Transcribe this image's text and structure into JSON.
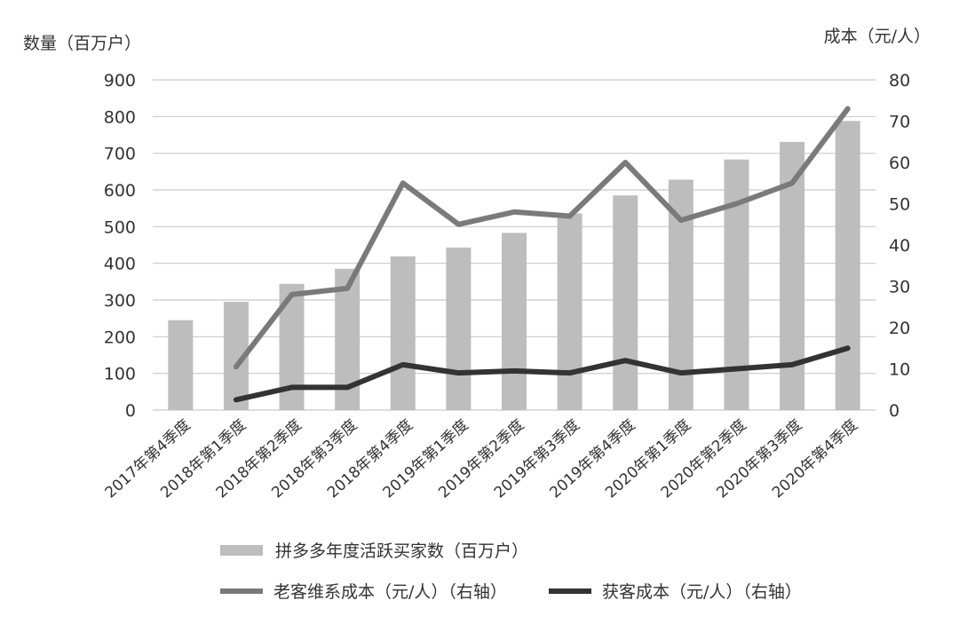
{
  "chart_data": {
    "type": "bar",
    "title": "",
    "ylabel": "数量（百万户）",
    "y2label": "成本（元/人）",
    "ylim": [
      0,
      900
    ],
    "y2lim": [
      0,
      80
    ],
    "yticks": [
      "900",
      "800",
      "700",
      "600",
      "500",
      "400",
      "300",
      "200",
      "100",
      "0"
    ],
    "y2ticks": [
      "80",
      "70",
      "60",
      "50",
      "40",
      "30",
      "20",
      "10",
      "0"
    ],
    "grid": true,
    "legend_position": "bottom",
    "categories": [
      "2017年第4季度",
      "2018年第1季度",
      "2018年第2季度",
      "2018年第3季度",
      "2018年第4季度",
      "2019年第1季度",
      "2019年第2季度",
      "2019年第3季度",
      "2019年第4季度",
      "2020年第1季度",
      "2020年第2季度",
      "2020年第3季度",
      "2020年第4季度"
    ],
    "series": [
      {
        "name": "拼多多年度活跃买家数（百万户）",
        "type": "bar",
        "axis": "left",
        "color": "#bdbdbd",
        "values": [
          245,
          295,
          344,
          385,
          419,
          443,
          483,
          536,
          585,
          628,
          683,
          731,
          788
        ]
      },
      {
        "name": "老客维系成本（元/人）（右轴）",
        "type": "line",
        "axis": "right",
        "color": "#7a7a7a",
        "values": [
          null,
          10.5,
          28,
          29.5,
          55,
          45,
          48,
          47,
          60,
          46,
          50,
          55,
          73
        ]
      },
      {
        "name": "获客成本（元/人）（右轴）",
        "type": "line",
        "axis": "right",
        "color": "#333333",
        "values": [
          null,
          2.5,
          5.5,
          5.5,
          11,
          9,
          9.5,
          9,
          12,
          9,
          10,
          11,
          15
        ]
      }
    ]
  }
}
